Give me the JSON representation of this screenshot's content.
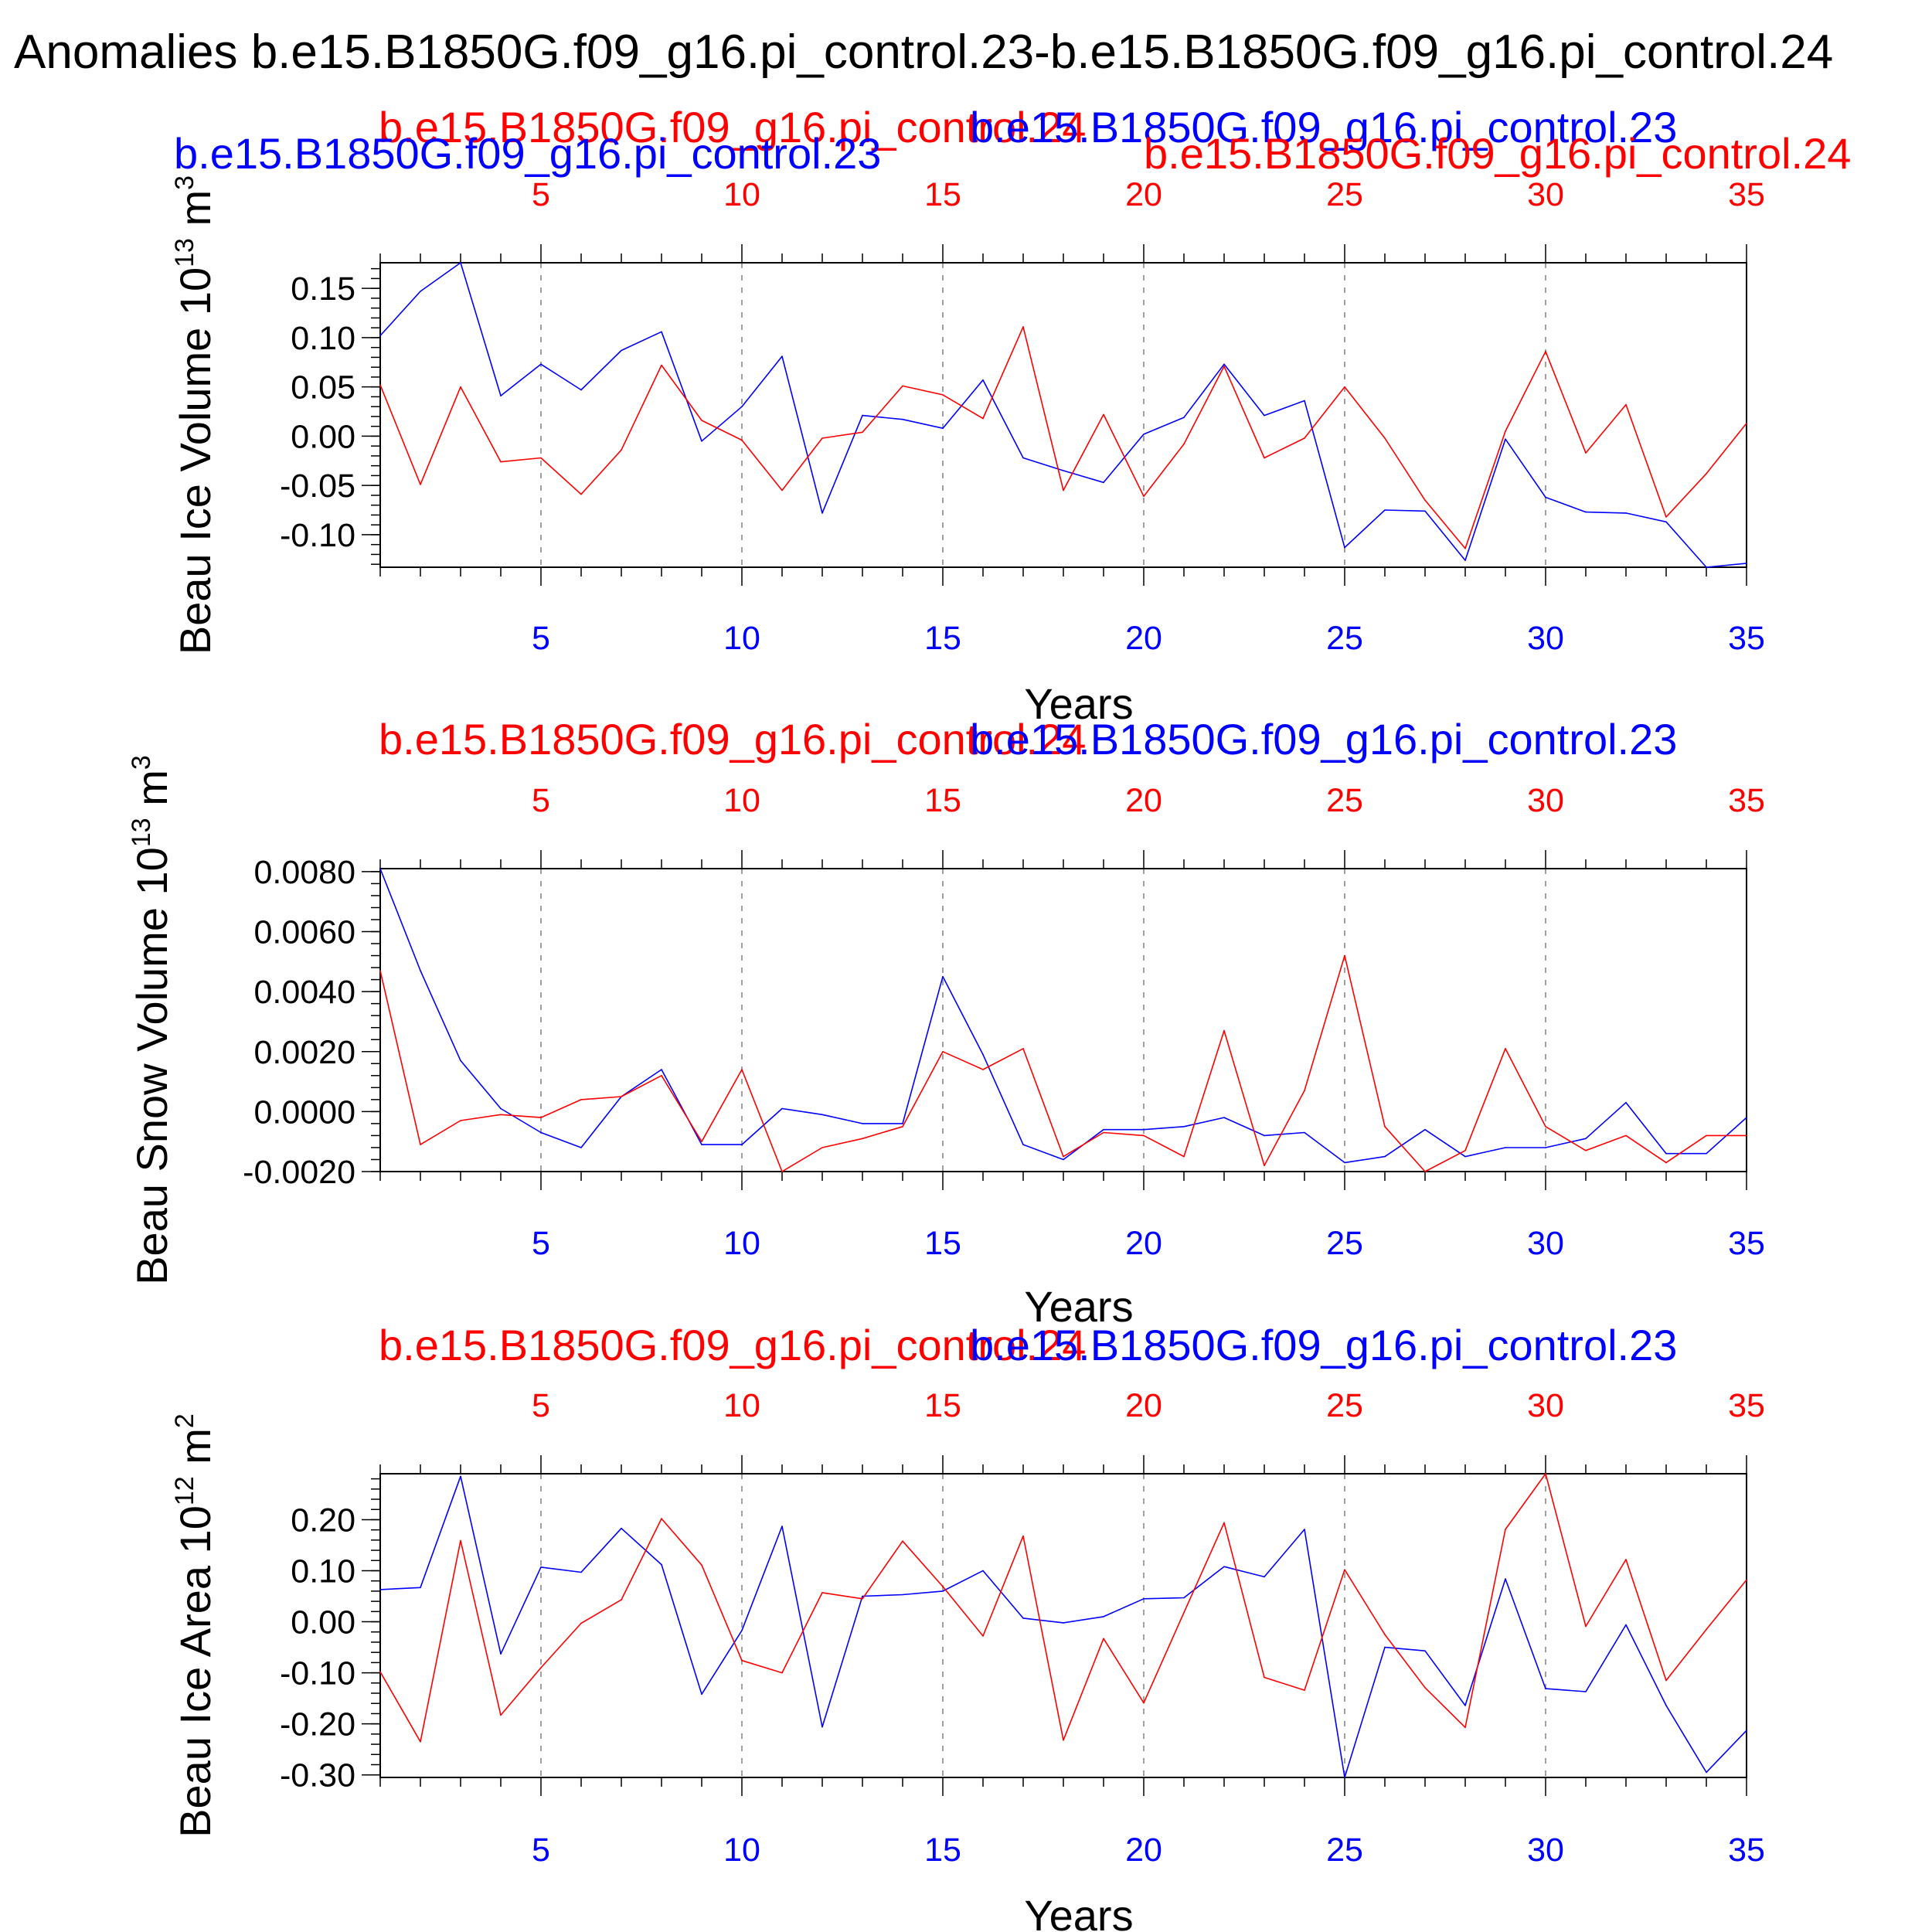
{
  "title": "Anomalies b.e15.B1850G.f09_g16.pi_control.23-b.e15.B1850G.f09_g16.pi_control.24",
  "colors": {
    "run23": "#0000ff",
    "run24": "#ff0000",
    "axis": "#000000",
    "grid": "#a0a0a0"
  },
  "chart_data": [
    {
      "type": "line",
      "xlabel": "Years",
      "ylabel": {
        "text": "Beau Ice Volume 10",
        "exp": "13",
        "unit": " m",
        "unit_exp": "3"
      },
      "xlim": [
        1,
        35
      ],
      "ylim": [
        -0.133,
        0.176
      ],
      "yticks": [
        "0.15",
        "0.10",
        "0.05",
        "0.00",
        "-0.05",
        "-0.10"
      ],
      "xticks": [
        "5",
        "10",
        "15",
        "20",
        "25",
        "30",
        "35"
      ],
      "grid": "vertical dashed",
      "series": [
        {
          "name": "b.e15.B1850G.f09_g16.pi_control.23",
          "color": "blue",
          "x": [
            1,
            2,
            3,
            4,
            5,
            6,
            7,
            8,
            9,
            10,
            11,
            12,
            13,
            14,
            15,
            16,
            17,
            18,
            19,
            20,
            21,
            22,
            23,
            24,
            25,
            26,
            27,
            28,
            29,
            30,
            31,
            32,
            33,
            34,
            35
          ],
          "values": [
            0.102,
            0.147,
            0.176,
            0.041,
            0.073,
            0.047,
            0.087,
            0.106,
            -0.005,
            0.03,
            0.081,
            -0.078,
            0.021,
            0.017,
            0.008,
            0.057,
            -0.022,
            -0.035,
            -0.047,
            0.002,
            0.019,
            0.073,
            0.021,
            0.036,
            -0.113,
            -0.075,
            -0.076,
            -0.126,
            -0.003,
            -0.062,
            -0.077,
            -0.078,
            -0.087,
            -0.133,
            -0.129
          ]
        },
        {
          "name": "b.e15.B1850G.f09_g16.pi_control.24",
          "color": "red",
          "x": [
            1,
            2,
            3,
            4,
            5,
            6,
            7,
            8,
            9,
            10,
            11,
            12,
            13,
            14,
            15,
            16,
            17,
            18,
            19,
            20,
            21,
            22,
            23,
            24,
            25,
            26,
            27,
            28,
            29,
            30,
            31,
            32,
            33,
            34,
            35
          ],
          "values": [
            0.052,
            -0.049,
            0.05,
            -0.026,
            -0.022,
            -0.059,
            -0.014,
            0.072,
            0.016,
            -0.004,
            -0.055,
            -0.002,
            0.004,
            0.051,
            0.042,
            0.018,
            0.111,
            -0.055,
            0.022,
            -0.061,
            -0.008,
            0.071,
            -0.022,
            -0.002,
            0.05,
            -0.002,
            -0.065,
            -0.114,
            0.005,
            0.086,
            -0.017,
            0.032,
            -0.082,
            -0.038,
            0.013
          ]
        }
      ],
      "legend": [
        {
          "label": "b.e15.B1850G.f09_g16.pi_control.24",
          "color": "red"
        },
        {
          "label": "b.e15.B1850G.f09_g16.pi_control.23",
          "color": "blue"
        },
        {
          "label": "b.e15.B1850G.f09_g16.pi_control.23",
          "color": "blue"
        },
        {
          "label": "b.e15.B1850G.f09_g16.pi_control.24",
          "color": "red"
        }
      ]
    },
    {
      "type": "line",
      "xlabel": "Years",
      "ylabel": {
        "text": "Beau Snow Volume 10",
        "exp": "13",
        "unit": " m",
        "unit_exp": "3"
      },
      "xlim": [
        1,
        35
      ],
      "ylim": [
        -0.002,
        0.0081
      ],
      "yticks": [
        "0.0080",
        "0.0060",
        "0.0040",
        "0.0020",
        "0.0000",
        "-0.0020"
      ],
      "xticks": [
        "5",
        "10",
        "15",
        "20",
        "25",
        "30",
        "35"
      ],
      "grid": "vertical dashed",
      "series": [
        {
          "name": "b.e15.B1850G.f09_g16.pi_control.23",
          "color": "blue",
          "x": [
            1,
            2,
            3,
            4,
            5,
            6,
            7,
            8,
            9,
            10,
            11,
            12,
            13,
            14,
            15,
            16,
            17,
            18,
            19,
            20,
            21,
            22,
            23,
            24,
            25,
            26,
            27,
            28,
            29,
            30,
            31,
            32,
            33,
            34,
            35
          ],
          "values": [
            0.0081,
            0.0047,
            0.0017,
            0.0001,
            -0.0007,
            -0.0012,
            0.0005,
            0.0014,
            -0.0011,
            -0.0011,
            0.0001,
            -0.0001,
            -0.0004,
            -0.0004,
            0.0045,
            0.0019,
            -0.0011,
            -0.0016,
            -0.0006,
            -0.0006,
            -0.0005,
            -0.0002,
            -0.0008,
            -0.0007,
            -0.0017,
            -0.0015,
            -0.0006,
            -0.0015,
            -0.0012,
            -0.0012,
            -0.0009,
            0.0003,
            -0.0014,
            -0.0014,
            -0.0002
          ]
        },
        {
          "name": "b.e15.B1850G.f09_g16.pi_control.24",
          "color": "red",
          "x": [
            1,
            2,
            3,
            4,
            5,
            6,
            7,
            8,
            9,
            10,
            11,
            12,
            13,
            14,
            15,
            16,
            17,
            18,
            19,
            20,
            21,
            22,
            23,
            24,
            25,
            26,
            27,
            28,
            29,
            30,
            31,
            32,
            33,
            34,
            35
          ],
          "values": [
            0.0047,
            -0.0011,
            -0.0003,
            -0.0001,
            -0.0002,
            0.0004,
            0.0005,
            0.0012,
            -0.001,
            0.0014,
            -0.002,
            -0.0012,
            -0.0009,
            -0.0005,
            0.002,
            0.0014,
            0.0021,
            -0.0015,
            -0.0007,
            -0.0008,
            -0.0015,
            0.0027,
            -0.0018,
            0.0007,
            0.0052,
            -0.0005,
            -0.002,
            -0.0013,
            0.0021,
            -0.0005,
            -0.0013,
            -0.0008,
            -0.0017,
            -0.0008,
            -0.0008
          ]
        }
      ],
      "legend": [
        {
          "label": "b.e15.B1850G.f09_g16.pi_control.24",
          "color": "red"
        },
        {
          "label": "b.e15.B1850G.f09_g16.pi_control.23",
          "color": "blue"
        }
      ]
    },
    {
      "type": "line",
      "xlabel": "Years",
      "ylabel": {
        "text": "Beau Ice Area 10",
        "exp": "12",
        "unit": " m",
        "unit_exp": "2"
      },
      "xlim": [
        1,
        35
      ],
      "ylim": [
        -0.305,
        0.29
      ],
      "yticks": [
        "0.20",
        "0.10",
        "0.00",
        "-0.10",
        "-0.20",
        "-0.30"
      ],
      "xticks": [
        "5",
        "10",
        "15",
        "20",
        "25",
        "30",
        "35"
      ],
      "grid": "vertical dashed",
      "series": [
        {
          "name": "b.e15.B1850G.f09_g16.pi_control.23",
          "color": "blue",
          "x": [
            1,
            2,
            3,
            4,
            5,
            6,
            7,
            8,
            9,
            10,
            11,
            12,
            13,
            14,
            15,
            16,
            17,
            18,
            19,
            20,
            21,
            22,
            23,
            24,
            25,
            26,
            27,
            28,
            29,
            30,
            31,
            32,
            33,
            34,
            35
          ],
          "values": [
            0.063,
            0.067,
            0.285,
            -0.063,
            0.107,
            0.097,
            0.183,
            0.112,
            -0.142,
            -0.017,
            0.187,
            -0.206,
            0.05,
            0.053,
            0.06,
            0.1,
            0.007,
            -0.002,
            0.01,
            0.045,
            0.047,
            0.108,
            0.088,
            0.181,
            -0.305,
            -0.05,
            -0.057,
            -0.164,
            0.084,
            -0.131,
            -0.137,
            -0.006,
            -0.164,
            -0.295,
            -0.213
          ]
        },
        {
          "name": "b.e15.B1850G.f09_g16.pi_control.24",
          "color": "red",
          "x": [
            1,
            2,
            3,
            4,
            5,
            6,
            7,
            8,
            9,
            10,
            11,
            12,
            13,
            14,
            15,
            16,
            17,
            18,
            19,
            20,
            21,
            22,
            23,
            24,
            25,
            26,
            27,
            28,
            29,
            30,
            31,
            32,
            33,
            34,
            35
          ],
          "values": [
            -0.098,
            -0.235,
            0.159,
            -0.183,
            -0.09,
            -0.003,
            0.043,
            0.202,
            0.111,
            -0.076,
            -0.1,
            0.057,
            0.045,
            0.158,
            0.069,
            -0.028,
            0.168,
            -0.232,
            -0.033,
            -0.159,
            0.018,
            0.194,
            -0.109,
            -0.134,
            0.102,
            -0.025,
            -0.129,
            -0.207,
            0.181,
            0.29,
            -0.009,
            0.122,
            -0.115,
            -0.015,
            0.082
          ]
        }
      ],
      "legend": [
        {
          "label": "b.e15.B1850G.f09_g16.pi_control.24",
          "color": "red"
        },
        {
          "label": "b.e15.B1850G.f09_g16.pi_control.23",
          "color": "blue"
        }
      ]
    }
  ]
}
